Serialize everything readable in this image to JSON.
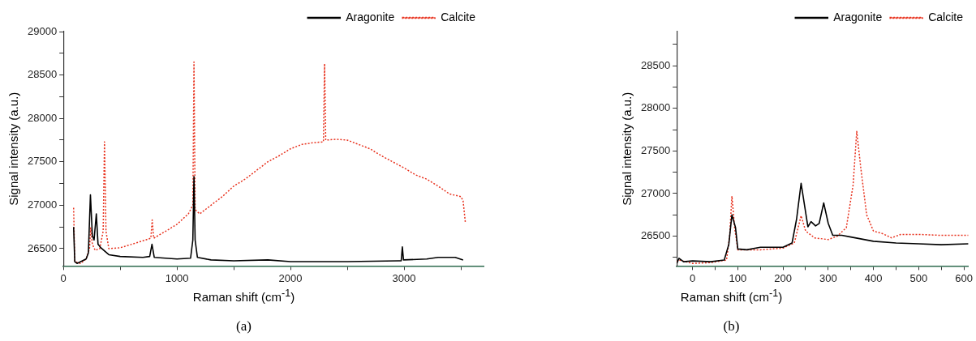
{
  "chart_data": [
    {
      "type": "line",
      "xlabel": "Raman shift (cm$^{-1}$)",
      "ylabel": "Signal intensity (a.u.)",
      "annotations": [
        "(a)"
      ],
      "legend": "top right",
      "grid": false,
      "marker": "none",
      "xlim": [
        0,
        3700
      ],
      "ylim": [
        26300,
        29000
      ],
      "xticks": [
        0,
        {
          "value": 500,
          "label": null
        },
        1000,
        {
          "value": 1500,
          "label": null
        },
        2000,
        {
          "value": 2500,
          "label": null
        },
        3000,
        {
          "value": 3500,
          "label": null
        }
      ],
      "yticks": [
        26500,
        {
          "value": 26750,
          "label": null
        },
        27000,
        {
          "value": 27250,
          "label": null
        },
        27500,
        {
          "value": 27750,
          "label": null
        },
        28000,
        {
          "value": 28250,
          "label": null
        },
        28500,
        {
          "value": 28750,
          "label": null
        },
        29000
      ],
      "series": [
        {
          "name": "Aragonite",
          "color": "#000000",
          "line_style": "solid",
          "x": [
            90,
            100,
            120,
            200,
            220,
            238,
            255,
            270,
            290,
            305,
            330,
            400,
            500,
            700,
            760,
            780,
            800,
            1000,
            1120,
            1140,
            1150,
            1160,
            1180,
            1300,
            1500,
            1800,
            2000,
            2500,
            2950,
            2975,
            2985,
            2995,
            3200,
            3300,
            3450,
            3520
          ],
          "values": [
            26750,
            26350,
            26330,
            26380,
            26450,
            27120,
            26650,
            26600,
            26900,
            26550,
            26510,
            26430,
            26410,
            26400,
            26410,
            26550,
            26400,
            26380,
            26390,
            26600,
            27330,
            26600,
            26400,
            26370,
            26360,
            26370,
            26350,
            26350,
            26360,
            26360,
            26520,
            26370,
            26380,
            26400,
            26400,
            26370
          ]
        },
        {
          "name": "Calcite",
          "color": "#e8321e",
          "line_style": "dotted",
          "x": [
            90,
            100,
            150,
            200,
            230,
            240,
            255,
            280,
            320,
            350,
            362,
            375,
            400,
            500,
            600,
            700,
            770,
            782,
            795,
            900,
            1000,
            1100,
            1140,
            1150,
            1160,
            1200,
            1300,
            1400,
            1500,
            1600,
            1700,
            1800,
            1900,
            2000,
            2100,
            2200,
            2290,
            2300,
            2310,
            2400,
            2500,
            2600,
            2700,
            2800,
            2900,
            3000,
            3100,
            3200,
            3300,
            3400,
            3500,
            3520,
            3540
          ],
          "values": [
            26970,
            26350,
            26330,
            26380,
            26500,
            26740,
            26550,
            26480,
            26500,
            26700,
            27730,
            26700,
            26500,
            26510,
            26550,
            26590,
            26620,
            26830,
            26620,
            26700,
            26780,
            26900,
            27000,
            28650,
            26950,
            26900,
            27000,
            27100,
            27220,
            27300,
            27400,
            27500,
            27570,
            27650,
            27700,
            27720,
            27730,
            28630,
            27750,
            27760,
            27750,
            27700,
            27650,
            27570,
            27500,
            27430,
            27350,
            27300,
            27220,
            27130,
            27100,
            27050,
            26800
          ]
        }
      ]
    },
    {
      "type": "line",
      "xlabel": "Raman shift (cm$^{-1}$)",
      "ylabel": "Signal intensity (a.u.)",
      "annotations": [
        "(b)"
      ],
      "legend": "top right",
      "grid": false,
      "marker": "none",
      "xlim": [
        -35,
        610
      ],
      "ylim": [
        26150,
        28900
      ],
      "xticks": [
        0,
        {
          "value": 50,
          "label": null
        },
        100,
        {
          "value": 150,
          "label": null
        },
        200,
        {
          "value": 250,
          "label": null
        },
        300,
        {
          "value": 350,
          "label": null
        },
        400,
        {
          "value": 450,
          "label": null
        },
        500,
        {
          "value": 550,
          "label": null
        },
        600
      ],
      "yticks": [
        {
          "value": 26250,
          "label": null
        },
        26500,
        {
          "value": 26750,
          "label": null
        },
        27000,
        {
          "value": 27250,
          "label": null
        },
        27500,
        {
          "value": 27750,
          "label": null
        },
        28000,
        {
          "value": 28250,
          "label": null
        },
        28500,
        {
          "value": 28750,
          "label": null
        }
      ],
      "series": [
        {
          "name": "Aragonite",
          "color": "#000000",
          "line_style": "solid",
          "x": [
            -35,
            -30,
            -20,
            0,
            40,
            70,
            80,
            87,
            95,
            100,
            120,
            150,
            200,
            220,
            230,
            240,
            245,
            255,
            262,
            272,
            280,
            290,
            300,
            310,
            330,
            350,
            400,
            450,
            500,
            550,
            610
          ],
          "values": [
            26180,
            26240,
            26200,
            26210,
            26200,
            26220,
            26400,
            26750,
            26600,
            26350,
            26340,
            26370,
            26370,
            26420,
            26700,
            27120,
            26950,
            26610,
            26670,
            26620,
            26650,
            26890,
            26650,
            26510,
            26510,
            26490,
            26440,
            26420,
            26410,
            26400,
            26410
          ]
        },
        {
          "name": "Calcite",
          "color": "#e8321e",
          "line_style": "dotted",
          "x": [
            -35,
            -30,
            0,
            40,
            75,
            82,
            87,
            93,
            100,
            150,
            200,
            225,
            240,
            250,
            270,
            300,
            320,
            340,
            355,
            363,
            372,
            385,
            400,
            420,
            440,
            460,
            500,
            550,
            610
          ],
          "values": [
            26200,
            26220,
            26180,
            26190,
            26220,
            26500,
            26970,
            26600,
            26340,
            26340,
            26360,
            26420,
            26740,
            26560,
            26480,
            26460,
            26500,
            26600,
            27100,
            27730,
            27300,
            26750,
            26560,
            26530,
            26480,
            26520,
            26520,
            26510,
            26510
          ]
        }
      ]
    }
  ]
}
